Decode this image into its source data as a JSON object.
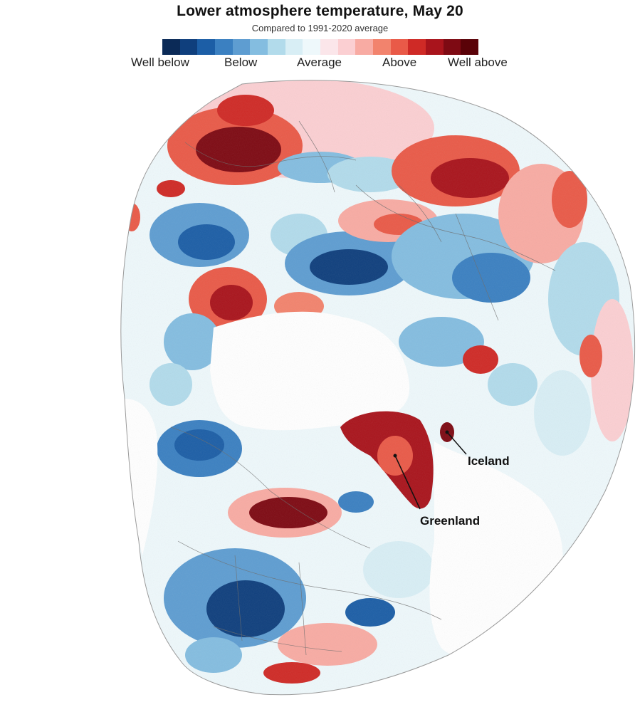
{
  "title": "Lower atmosphere temperature, May 20",
  "subtitle": "Compared to 1991-2020 average",
  "legend": {
    "labels": [
      "Well below",
      "Below",
      "Average",
      "Above",
      "Well above"
    ],
    "colors": [
      "#0b2a57",
      "#0f3f7d",
      "#1c5ea6",
      "#3b80c1",
      "#5e9dd1",
      "#84bde0",
      "#b2dbeb",
      "#d8eef5",
      "#eef8fb",
      "#fbe6ea",
      "#fbcfd2",
      "#f8aba3",
      "#f2836d",
      "#e95a48",
      "#cf2a26",
      "#a9141c",
      "#7e0a13",
      "#5a0208"
    ]
  },
  "annotations": {
    "iceland": "Iceland",
    "greenland": "Greenland"
  },
  "colors": {
    "ocean_mask": "#ffffff",
    "border": "#6f6f6f"
  }
}
